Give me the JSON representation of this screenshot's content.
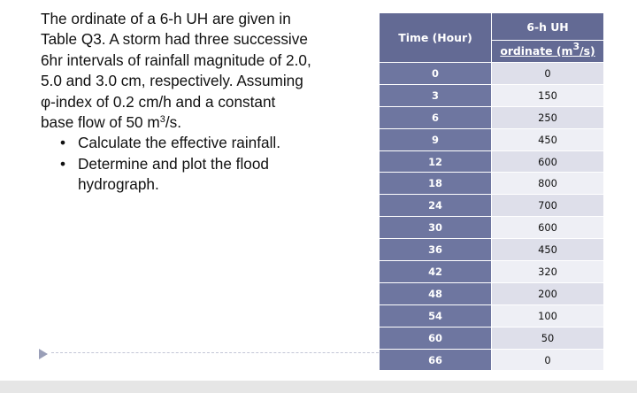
{
  "problem": {
    "lines": [
      "The ordinate of a 6-h UH are given in",
      "Table Q3. A storm had three successive",
      "6hr intervals of rainfall magnitude of 2.0,",
      "5.0 and 3.0 cm, respectively. Assuming",
      "φ-index of 0.2 cm/h and a constant"
    ],
    "last_line_before": "base flow of 50 m",
    "last_line_sup": "3",
    "last_line_after": "/s.",
    "bullet_char": "•",
    "bullets": [
      {
        "line1": "Calculate the effective rainfall.",
        "line2": ""
      },
      {
        "line1": "Determine and plot the flood",
        "line2": "hydrograph."
      }
    ]
  },
  "table": {
    "col1_header": "Time (Hour)",
    "col2_header_top": "6-h UH",
    "col2_header_bottom_before": "ordinate (m",
    "col2_header_bottom_sup": "3",
    "col2_header_bottom_after": "/s)",
    "rows": [
      {
        "time": "0",
        "ordinate": "0"
      },
      {
        "time": "3",
        "ordinate": "150"
      },
      {
        "time": "6",
        "ordinate": "250"
      },
      {
        "time": "9",
        "ordinate": "450"
      },
      {
        "time": "12",
        "ordinate": "600"
      },
      {
        "time": "18",
        "ordinate": "800"
      },
      {
        "time": "24",
        "ordinate": "700"
      },
      {
        "time": "30",
        "ordinate": "600"
      },
      {
        "time": "36",
        "ordinate": "450"
      },
      {
        "time": "42",
        "ordinate": "320"
      },
      {
        "time": "48",
        "ordinate": "200"
      },
      {
        "time": "54",
        "ordinate": "100"
      },
      {
        "time": "60",
        "ordinate": "50"
      },
      {
        "time": "66",
        "ordinate": "0"
      }
    ]
  },
  "colors": {
    "header_bg": "#636a94",
    "time_cell_bg": "#6e76a0",
    "row_light": "#eeeff5",
    "row_dark": "#dedfea"
  },
  "icons": {
    "nav": "play-arrow-icon"
  }
}
